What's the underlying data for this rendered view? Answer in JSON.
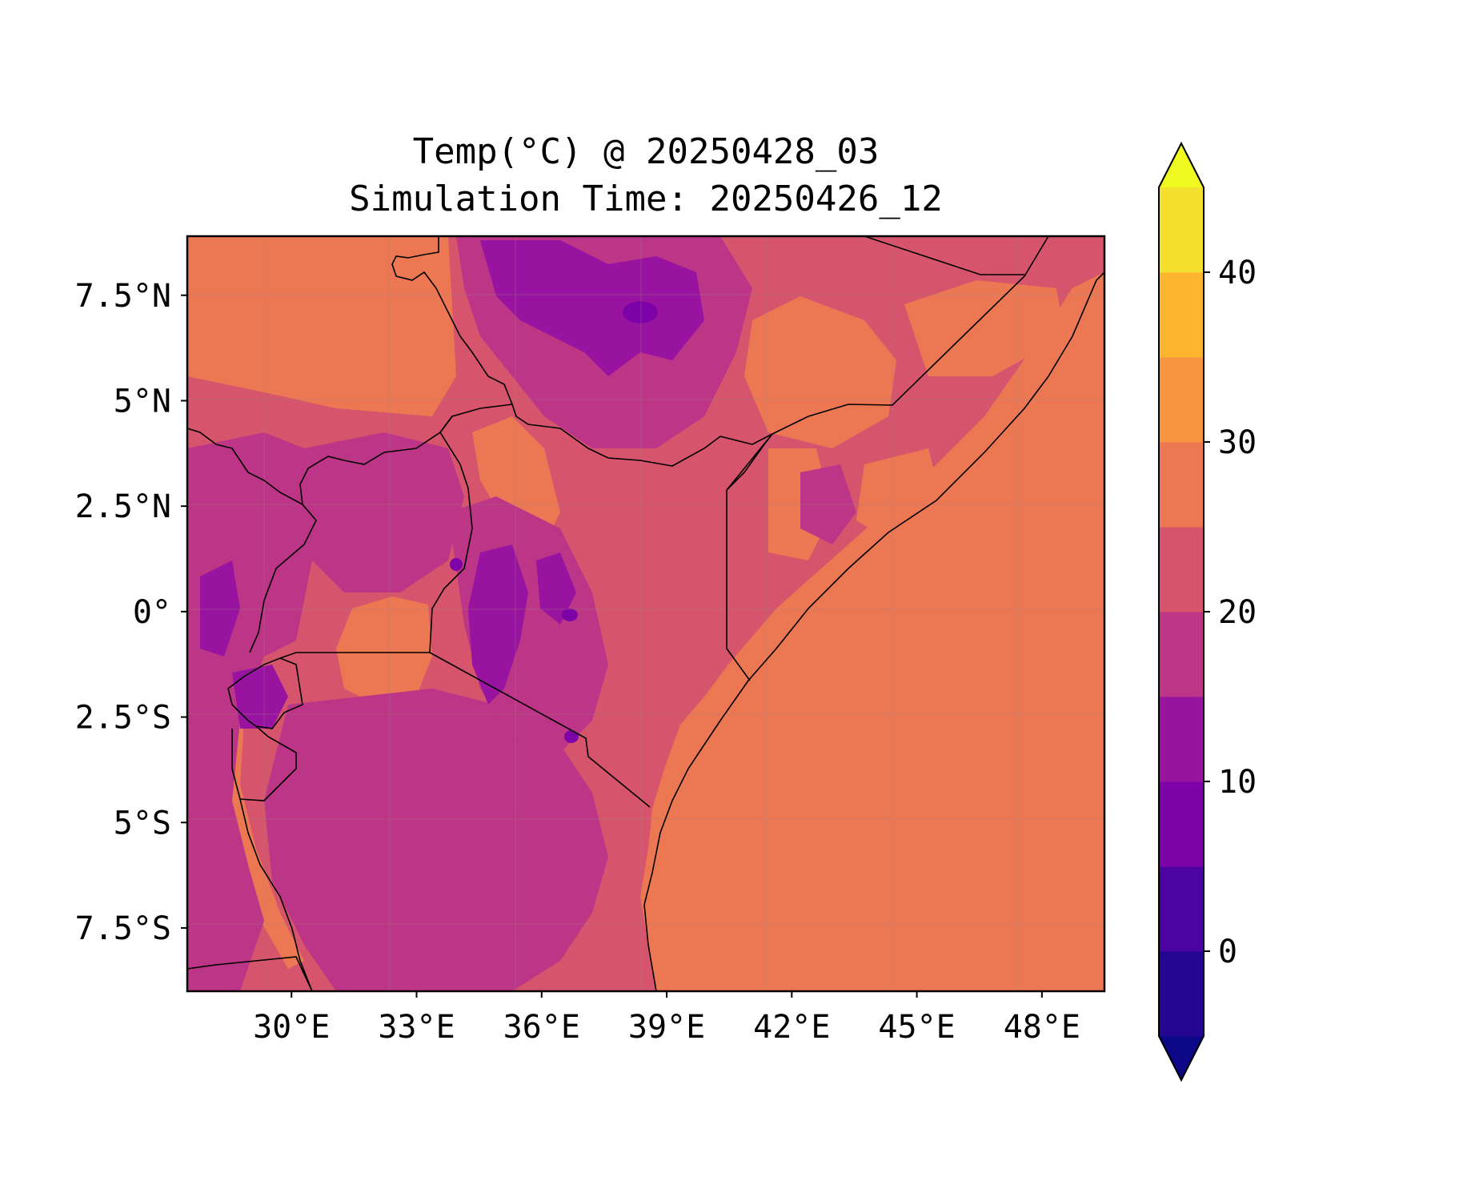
{
  "title": {
    "line1": "Temp(°C) @ 20250428_03",
    "line2": "Simulation Time: 20250426_12"
  },
  "map": {
    "region": "East Africa",
    "lon_range": [
      27.5,
      49.5
    ],
    "lat_range": [
      -9.0,
      8.9
    ],
    "x_ticks": [
      30,
      33,
      36,
      39,
      42,
      45,
      48
    ],
    "x_tick_labels": [
      "30°E",
      "33°E",
      "36°E",
      "39°E",
      "42°E",
      "45°E",
      "48°E"
    ],
    "y_ticks": [
      7.5,
      5,
      2.5,
      0,
      -2.5,
      -5,
      -7.5
    ],
    "y_tick_labels": [
      "7.5°N",
      "5°N",
      "2.5°N",
      "0°",
      "2.5°S",
      "5°S",
      "7.5°S"
    ],
    "gridlines": true,
    "ocean_value_c": 27.5,
    "border_color": "#000000"
  },
  "colorbar": {
    "orientation": "vertical",
    "extend": "both",
    "levels": [
      -5,
      0,
      5,
      10,
      15,
      20,
      25,
      30,
      35,
      40,
      45
    ],
    "colors": [
      "#230691",
      "#4b03a1",
      "#7d03a8",
      "#9814a0",
      "#bc3587",
      "#d6556d",
      "#ec7853",
      "#f8963f",
      "#fdb42f",
      "#f3e02e"
    ],
    "under_color": "#0d0887",
    "over_color": "#f0f921",
    "ticks": [
      0,
      10,
      20,
      30,
      40
    ],
    "tick_labels": [
      "0",
      "10",
      "20",
      "30",
      "40"
    ]
  }
}
